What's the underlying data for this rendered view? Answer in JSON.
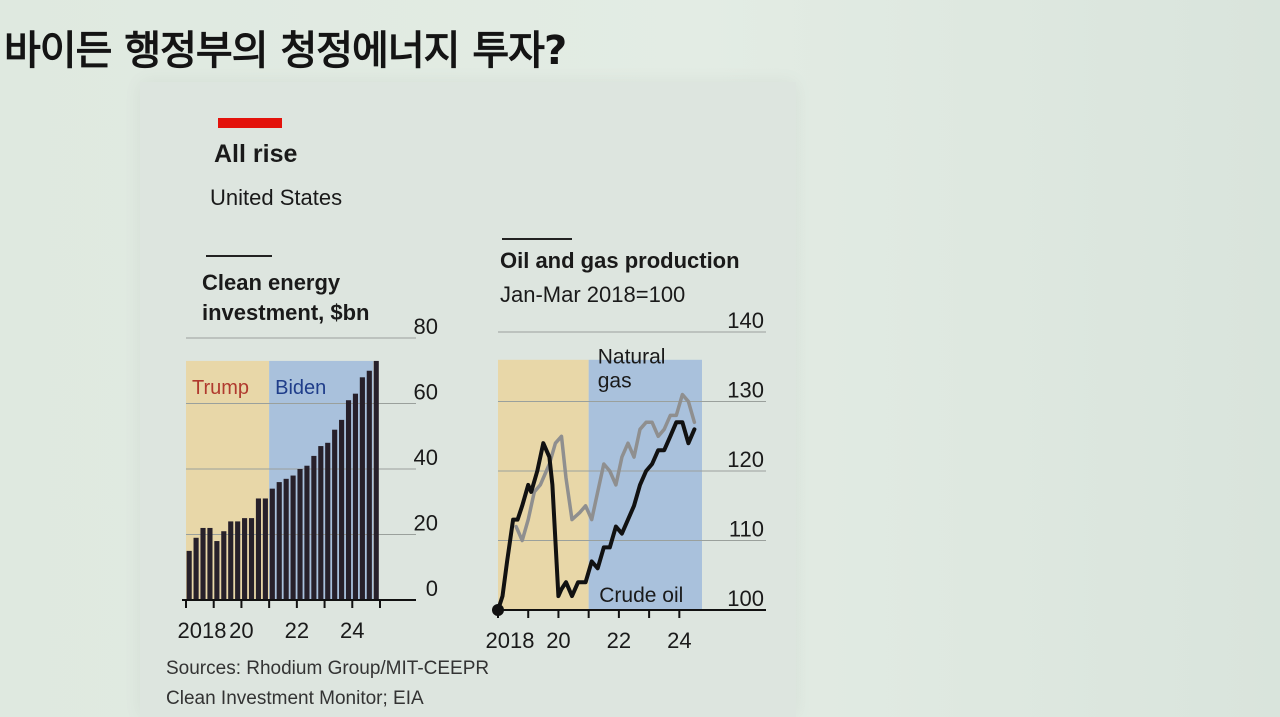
{
  "slide": {
    "title": "바이든 행정부의 청정에너지 투자?"
  },
  "card": {
    "title": "All rise",
    "subtitle": "United States",
    "source_line1": "Sources: Rhodium Group/MIT-CEEPR",
    "source_line2": "Clean Investment Monitor; EIA"
  },
  "colors": {
    "trump_band": "#e8d7a8",
    "biden_band": "#a9c1dc",
    "bars": "#27202a",
    "crude_oil": "#111111",
    "natural_gas": "#8f8f8f",
    "trump_label": "#b03a2e",
    "biden_label": "#1f3d8a",
    "accent": "#e3120b"
  },
  "chart_data": [
    {
      "type": "bar",
      "title_line1": "Clean energy",
      "title_line2": "investment, $bn",
      "ylim": [
        0,
        80
      ],
      "yticks": [
        "0",
        "20",
        "40",
        "60",
        "80"
      ],
      "xticks": [
        "2018",
        "20",
        "22",
        "24"
      ],
      "xtick_years": [
        2018,
        2020,
        2022,
        2024
      ],
      "x_start": 2018,
      "periods_per_year": 4,
      "grid": true,
      "period_bands": [
        {
          "label": "Trump",
          "from": 2018,
          "to": 2021
        },
        {
          "label": "Biden",
          "from": 2021,
          "to": 2024.75
        }
      ],
      "values": [
        15,
        19,
        22,
        22,
        18,
        21,
        24,
        24,
        25,
        25,
        31,
        31,
        34,
        36,
        37,
        38,
        40,
        41,
        44,
        47,
        48,
        52,
        55,
        61,
        63,
        68,
        70,
        73
      ]
    },
    {
      "type": "line",
      "title": "Oil and gas production",
      "subtitle": "Jan-Mar 2018=100",
      "ylim": [
        100,
        140
      ],
      "yticks": [
        "100",
        "110",
        "120",
        "130",
        "140"
      ],
      "xticks": [
        "2018",
        "20",
        "22",
        "24"
      ],
      "xtick_years": [
        2018,
        2020,
        2022,
        2024
      ],
      "x_start": 2018,
      "grid": true,
      "period_bands": [
        {
          "label": "",
          "from": 2018,
          "to": 2021
        },
        {
          "label": "",
          "from": 2021,
          "to": 2024.75
        }
      ],
      "series": [
        {
          "name": "Natural gas",
          "name_line1": "Natural",
          "name_line2": "gas",
          "x": [
            2018.6,
            2018.8,
            2019.0,
            2019.2,
            2019.4,
            2019.7,
            2019.9,
            2020.1,
            2020.25,
            2020.45,
            2020.7,
            2020.9,
            2021.1,
            2021.3,
            2021.5,
            2021.7,
            2021.9,
            2022.1,
            2022.3,
            2022.5,
            2022.7,
            2022.9,
            2023.1,
            2023.3,
            2023.5,
            2023.7,
            2023.9,
            2024.1,
            2024.3,
            2024.5
          ],
          "values": [
            112,
            110,
            113,
            117,
            118,
            121,
            124,
            125,
            119,
            113,
            114,
            115,
            113,
            117,
            121,
            120,
            118,
            122,
            124,
            122,
            126,
            127,
            127,
            125,
            126,
            128,
            128,
            131,
            130,
            127
          ]
        },
        {
          "name": "Crude oil",
          "x": [
            2018.0,
            2018.15,
            2018.3,
            2018.5,
            2018.65,
            2018.8,
            2019.0,
            2019.1,
            2019.3,
            2019.5,
            2019.7,
            2019.8,
            2020.0,
            2020.1,
            2020.25,
            2020.45,
            2020.65,
            2020.9,
            2021.1,
            2021.3,
            2021.5,
            2021.7,
            2021.9,
            2022.1,
            2022.3,
            2022.5,
            2022.7,
            2022.9,
            2023.1,
            2023.3,
            2023.5,
            2023.7,
            2023.9,
            2024.1,
            2024.3,
            2024.5
          ],
          "values": [
            100,
            102,
            107,
            113,
            113,
            115,
            118,
            117,
            120,
            124,
            122,
            118,
            102,
            103,
            104,
            102,
            104,
            104,
            107,
            106,
            109,
            109,
            112,
            111,
            113,
            115,
            118,
            120,
            121,
            123,
            123,
            125,
            127,
            127,
            124,
            126
          ]
        }
      ]
    }
  ]
}
